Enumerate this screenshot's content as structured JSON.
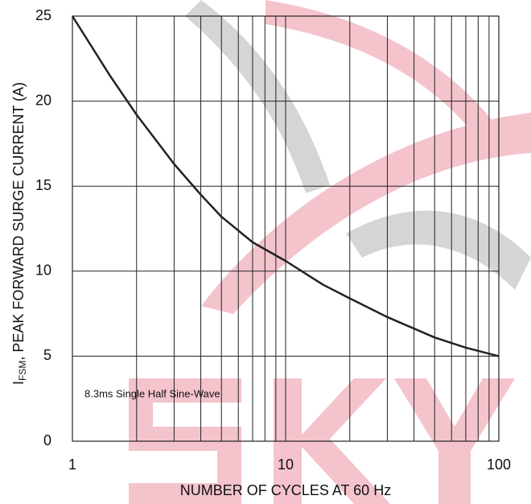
{
  "chart_data": {
    "type": "line",
    "x_label": "NUMBER OF CYCLES AT 60 Hz",
    "y_label": {
      "main": "I",
      "sub": "FSM",
      "rest": ", PEAK FORWARD SURGE CURRENT (A)"
    },
    "annotation": "8.3ms Single Half Sine-Wave",
    "x": [
      1,
      1.5,
      2,
      3,
      4,
      5,
      7,
      10,
      15,
      20,
      30,
      50,
      70,
      100
    ],
    "series": [
      {
        "color": "#222222",
        "values": [
          25,
          21.5,
          19.2,
          16.3,
          14.5,
          13.2,
          11.7,
          10.6,
          9.2,
          8.4,
          7.3,
          6.1,
          5.5,
          5.0
        ]
      }
    ],
    "x_log": true,
    "xlim": [
      1,
      100
    ],
    "xticks": [
      1,
      10,
      100
    ],
    "xminor": [
      2,
      3,
      4,
      5,
      6,
      7,
      8,
      9,
      20,
      30,
      40,
      50,
      60,
      70,
      80,
      90
    ],
    "ylim": [
      0,
      25
    ],
    "yticks": [
      0,
      5,
      10,
      15,
      20,
      25
    ],
    "grid": true
  }
}
